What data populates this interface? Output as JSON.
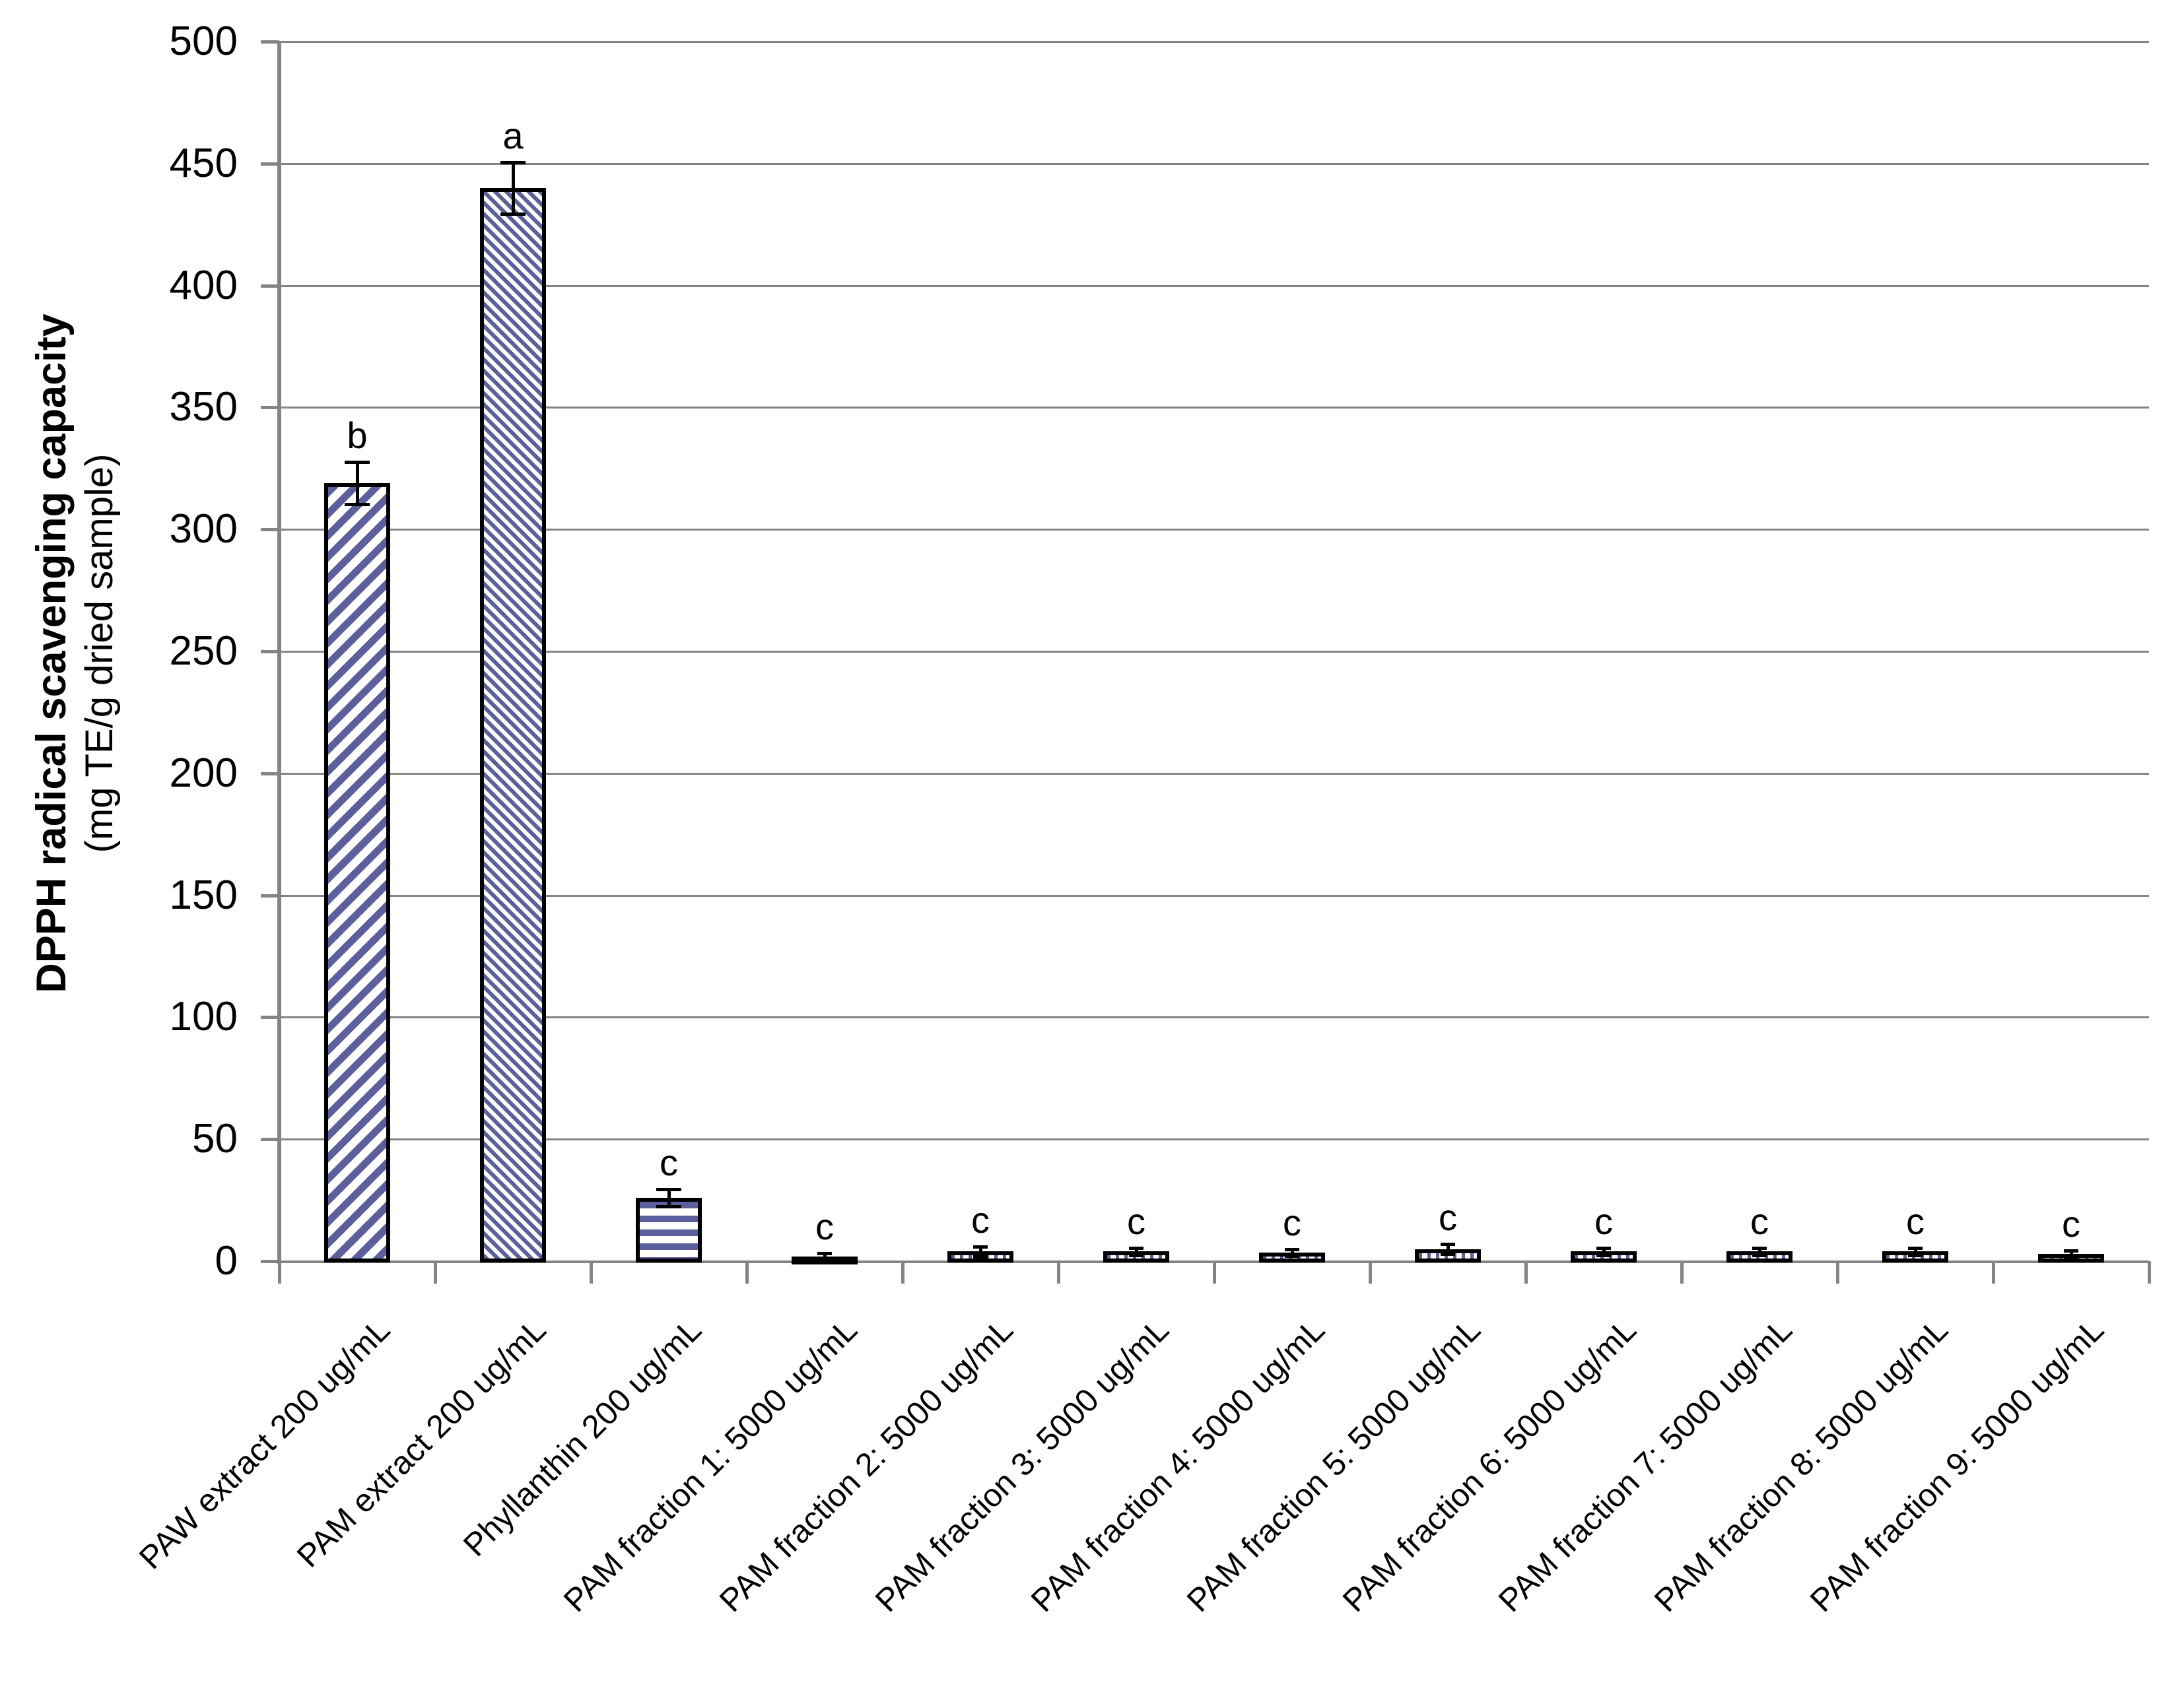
{
  "y_axis": {
    "title_line1": "DPPH radical scavenging capacity",
    "title_line2": "(mg TE/g dried sample)",
    "tick_labels": [
      "0",
      "50",
      "100",
      "150",
      "200",
      "250",
      "300",
      "350",
      "400",
      "450",
      "500"
    ]
  },
  "chart_data": {
    "type": "bar",
    "title": "",
    "xlabel": "",
    "ylabel": "DPPH radical scavenging capacity (mg TE/g dried sample)",
    "ylim": [
      0,
      500
    ],
    "yticks": [
      0,
      50,
      100,
      150,
      200,
      250,
      300,
      350,
      400,
      450,
      500
    ],
    "grid": true,
    "legend": "none",
    "bar_color": "#5b5f9e",
    "bar_border_color": "#000000",
    "gridline_color": "#848484",
    "categories": [
      "PAW extract 200 ug/mL",
      "PAM extract 200 ug/mL",
      "Phyllanthin 200 ug/mL",
      "PAM fraction 1: 5000 ug/mL",
      "PAM fraction 2: 5000 ug/mL",
      "PAM fraction 3: 5000 ug/mL",
      "PAM fraction 4: 5000 ug/mL",
      "PAM fraction 5: 5000 ug/mL",
      "PAM fraction 6: 5000 ug/mL",
      "PAM fraction 7: 5000 ug/mL",
      "PAM fraction 8: 5000 ug/mL",
      "PAM fraction 9: 5000 ug/mL"
    ],
    "values": [
      319,
      440,
      26,
      2,
      4,
      4,
      3.5,
      5,
      4,
      4,
      4,
      3
    ],
    "errors": [
      8,
      10,
      3,
      0.6,
      1.5,
      1,
      0.8,
      1.5,
      1,
      1,
      1,
      0.7
    ],
    "sig_letters": [
      "b",
      "a",
      "c",
      "c",
      "c",
      "c",
      "c",
      "c",
      "c",
      "c",
      "c",
      "c"
    ],
    "patterns": [
      "diag-up-wide",
      "diag-down-fine",
      "horizontal-stripe",
      "vertical-stripe",
      "vertical-stripe",
      "vertical-stripe",
      "vertical-stripe",
      "vertical-stripe",
      "vertical-stripe",
      "vertical-stripe",
      "vertical-stripe",
      "vertical-stripe"
    ]
  }
}
